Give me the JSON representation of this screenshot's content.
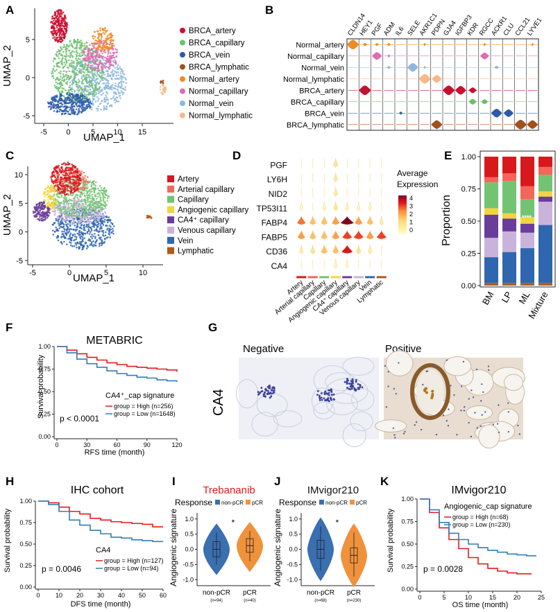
{
  "panel_letters": [
    "A",
    "B",
    "C",
    "D",
    "E",
    "F",
    "G",
    "H",
    "I",
    "J",
    "K"
  ],
  "panelA": {
    "xlabel": "UMAP_1",
    "ylabel": "UMAP_2",
    "xticks": [
      "-5",
      "0",
      "5",
      "10",
      "15"
    ],
    "yticks": [
      "5",
      "0",
      "-5"
    ],
    "legend": [
      {
        "label": "BRCA_artery",
        "color": "#c8102e"
      },
      {
        "label": "BRCA_capillary",
        "color": "#6cc06c"
      },
      {
        "label": "BRCA_vein",
        "color": "#2b5ca8"
      },
      {
        "label": "BRCA_lymphatic",
        "color": "#a3501d"
      },
      {
        "label": "Normal_artery",
        "color": "#f08a24"
      },
      {
        "label": "Normal_capillary",
        "color": "#e06bb0"
      },
      {
        "label": "Normal_vein",
        "color": "#8eb8de"
      },
      {
        "label": "Normal_lymphatic",
        "color": "#f7b98a"
      }
    ]
  },
  "panelB": {
    "genes": [
      "CLDN14",
      "HEY1",
      "PGF",
      "ADM",
      "IL6",
      "SELE",
      "AKR1C1",
      "PDPN",
      "GJA4",
      "IGFBP3",
      "KDR",
      "RGCC",
      "ACKR1",
      "CLU",
      "CCL21",
      "LYVE1"
    ],
    "rows": [
      {
        "label": "Normal_artery",
        "color": "#f08a24",
        "cells": [
          1.0,
          0.3,
          0.2,
          0.2,
          0,
          0,
          0.1,
          0,
          0,
          0,
          0,
          0.1,
          0,
          0,
          0,
          0.1
        ]
      },
      {
        "label": "Normal_capillary",
        "color": "#e06bb0",
        "cells": [
          0,
          0,
          0.8,
          0.1,
          0,
          0,
          0,
          0,
          0,
          0,
          0,
          0.7,
          0,
          0,
          0,
          0
        ]
      },
      {
        "label": "Normal_vein",
        "color": "#8eb8de",
        "cells": [
          0,
          0,
          0,
          0.2,
          0,
          0.9,
          0.1,
          0,
          0,
          0,
          0,
          0,
          0.3,
          0,
          0,
          0
        ]
      },
      {
        "label": "Normal_lymphatic",
        "color": "#f7b98a",
        "cells": [
          0,
          0,
          0,
          0,
          0,
          0,
          1.0,
          0.8,
          0,
          0,
          0,
          0,
          0,
          0,
          0,
          0
        ]
      },
      {
        "label": "BRCA_artery",
        "color": "#c8102e",
        "cells": [
          0,
          1.0,
          0,
          0,
          0,
          0,
          0,
          0,
          1.0,
          0.9,
          0.6,
          0,
          0,
          0,
          0,
          0
        ]
      },
      {
        "label": "BRCA_capillary",
        "color": "#6cc06c",
        "cells": [
          0,
          0,
          0,
          0,
          0,
          0,
          0,
          0,
          0,
          0,
          0.6,
          0.5,
          0,
          0,
          0,
          0
        ]
      },
      {
        "label": "BRCA_vein",
        "color": "#2b5ca8",
        "cells": [
          0,
          0,
          0,
          0,
          0.2,
          0,
          0,
          0,
          0,
          0,
          0,
          0,
          0.9,
          0.8,
          0,
          0
        ]
      },
      {
        "label": "BRCA_lymphatic",
        "color": "#a3501d",
        "cells": [
          0,
          0,
          0,
          0,
          0,
          0,
          0,
          0.9,
          0,
          0,
          0,
          0,
          0,
          0,
          1.0,
          0.9
        ]
      }
    ]
  },
  "panelC": {
    "xlabel": "UMAP_1",
    "ylabel": "UMAP_2",
    "xticks": [
      "-5",
      "0",
      "5",
      "10"
    ],
    "yticks": [
      "10",
      "5",
      "0",
      "-5"
    ],
    "legend": [
      {
        "label": "Artery",
        "color": "#d7191c"
      },
      {
        "label": "Arterial capillary",
        "color": "#f4665a"
      },
      {
        "label": "Capillary",
        "color": "#72c472"
      },
      {
        "label": "Angiogenic capillary",
        "color": "#f2d53c"
      },
      {
        "label": "CA4⁺ capillary",
        "color": "#6a3d9a"
      },
      {
        "label": "Venous capillary",
        "color": "#c9b3db"
      },
      {
        "label": "Vein",
        "color": "#2f66b0"
      },
      {
        "label": "Lymphatic",
        "color": "#b15a1a"
      }
    ]
  },
  "panelD": {
    "genes": [
      "PGF",
      "LY6H",
      "NID2",
      "TP53I11",
      "FABP4",
      "FABP5",
      "CD36",
      "CA4"
    ],
    "celltypes": [
      "Artery",
      "Arterial capillary",
      "Capillary",
      "Angiogenic capillary",
      "CA4⁺ capillary",
      "Venous capillary",
      "Vein",
      "Lymphatic"
    ],
    "colors": [
      "#d7191c",
      "#f4665a",
      "#72c472",
      "#f2d53c",
      "#6a3d9a",
      "#c9b3db",
      "#2f66b0",
      "#b15a1a"
    ],
    "values": [
      [
        0,
        0,
        0,
        0.8,
        0,
        0,
        0,
        0
      ],
      [
        0,
        0,
        0,
        0.6,
        0,
        0,
        0,
        0
      ],
      [
        0,
        0,
        0,
        0.6,
        0,
        0,
        0,
        0
      ],
      [
        0.1,
        0,
        0.3,
        0.7,
        0.3,
        0.2,
        0.2,
        0
      ],
      [
        2.5,
        1.5,
        1.5,
        2,
        4.5,
        2,
        1.5,
        0.5
      ],
      [
        2,
        1.5,
        1.5,
        2,
        3,
        3,
        2,
        3
      ],
      [
        0.5,
        0.8,
        1.5,
        1.5,
        3.5,
        0.8,
        0.5,
        0
      ],
      [
        0,
        0,
        0,
        0.2,
        0.1,
        0,
        0,
        0
      ]
    ],
    "legend_title": "Average Expression",
    "legend_ticks": [
      "4",
      "3",
      "2",
      "1",
      "0"
    ]
  },
  "panelE": {
    "chart_data": {
      "type": "bar",
      "stacked": true,
      "categories": [
        "BM",
        "LP",
        "ML",
        "Mixture"
      ],
      "ylabel": "Proportion",
      "yticks": [
        "1.00",
        "0.75",
        "0.50",
        "0.25",
        "0.00"
      ],
      "ylim": [
        0,
        1
      ],
      "series": [
        {
          "name": "Lymphatic",
          "color": "#b15a1a",
          "values": [
            0.02,
            0.02,
            0.02,
            0.02
          ]
        },
        {
          "name": "Vein",
          "color": "#2f66b0",
          "values": [
            0.2,
            0.24,
            0.27,
            0.45
          ]
        },
        {
          "name": "Venous capillary",
          "color": "#c9b3db",
          "values": [
            0.15,
            0.16,
            0.12,
            0.18
          ]
        },
        {
          "name": "CA4⁺ capillary",
          "color": "#6a3d9a",
          "values": [
            0.18,
            0.1,
            0.07,
            0.04
          ]
        },
        {
          "name": "Angiogenic capillary",
          "color": "#f2d53c",
          "values": [
            0.05,
            0.04,
            0.05,
            0.04
          ]
        },
        {
          "name": "Capillary",
          "color": "#72c472",
          "values": [
            0.2,
            0.25,
            0.14,
            0.13
          ]
        },
        {
          "name": "Arterial capillary",
          "color": "#f4665a",
          "values": [
            0.04,
            0.06,
            0.1,
            0.06
          ]
        },
        {
          "name": "Artery",
          "color": "#d7191c",
          "values": [
            0.16,
            0.13,
            0.23,
            0.08
          ]
        }
      ],
      "annotation": "****"
    }
  },
  "panelF": {
    "title": "METABRIC",
    "chart_data": {
      "type": "line",
      "xlabel": "RFS time (month)",
      "ylabel": "Survival probability",
      "xticks": [
        "0",
        "30",
        "60",
        "90",
        "120"
      ],
      "yticks": [
        "1.00",
        "0.75",
        "0.50",
        "0.25",
        "0.00"
      ],
      "xlim": [
        0,
        120
      ],
      "ylim": [
        0,
        1
      ],
      "series": [
        {
          "name": "High",
          "color": "#e31a1c",
          "x": [
            0,
            10,
            20,
            30,
            40,
            50,
            60,
            70,
            80,
            90,
            100,
            110,
            120
          ],
          "y": [
            1,
            0.96,
            0.92,
            0.88,
            0.85,
            0.82,
            0.8,
            0.78,
            0.77,
            0.76,
            0.75,
            0.74,
            0.72
          ]
        },
        {
          "name": "Low",
          "color": "#2c7fb8",
          "x": [
            0,
            10,
            20,
            30,
            40,
            50,
            60,
            70,
            80,
            90,
            100,
            110,
            120
          ],
          "y": [
            1,
            0.93,
            0.86,
            0.81,
            0.77,
            0.73,
            0.7,
            0.68,
            0.66,
            0.65,
            0.63,
            0.62,
            0.61
          ]
        }
      ]
    },
    "legend_title": "CA4⁺_cap signature",
    "legend": [
      "group = High (n=256)",
      "group = Low (n=1648)"
    ],
    "pvalue": "p < 0.0001"
  },
  "panelG": {
    "row_label": "CA4",
    "negative": "Negative",
    "positive": "Positive"
  },
  "panelH": {
    "title": "IHC cohort",
    "chart_data": {
      "type": "line",
      "xlabel": "DFS time (month)",
      "ylabel": "Survival probability",
      "xticks": [
        "0",
        "10",
        "20",
        "30",
        "40",
        "50",
        "60"
      ],
      "yticks": [
        "1.00",
        "0.75",
        "0.50",
        "0.25",
        "0.00"
      ],
      "xlim": [
        0,
        60
      ],
      "ylim": [
        0,
        1
      ],
      "series": [
        {
          "name": "High",
          "color": "#e31a1c",
          "x": [
            0,
            5,
            10,
            15,
            20,
            25,
            30,
            35,
            40,
            45,
            50,
            55,
            60
          ],
          "y": [
            1,
            0.98,
            0.93,
            0.88,
            0.85,
            0.8,
            0.78,
            0.76,
            0.75,
            0.74,
            0.73,
            0.7,
            0.7
          ]
        },
        {
          "name": "Low",
          "color": "#2c7fb8",
          "x": [
            0,
            5,
            10,
            15,
            20,
            25,
            30,
            35,
            40,
            45,
            50,
            55,
            60
          ],
          "y": [
            1,
            0.96,
            0.88,
            0.78,
            0.72,
            0.66,
            0.62,
            0.58,
            0.57,
            0.55,
            0.54,
            0.53,
            0.53
          ]
        }
      ]
    },
    "legend_title": "CA4",
    "legend": [
      "group = High (n=127)",
      "group = Low (n=94)"
    ],
    "pvalue": "p = 0.0046"
  },
  "panelI": {
    "title": "Trebananib",
    "title_color": "#e31a1c",
    "response_label": "Response",
    "legend": [
      "non-pCR",
      "pCR"
    ],
    "ylabel": "Angiogenic signature",
    "yticks": [
      "1.0",
      "0.5",
      "0.0",
      "-0.5",
      "-1.0"
    ],
    "groups": [
      "non-pCR",
      "pCR"
    ],
    "counts": [
      "(n=94)",
      "(n=40)"
    ],
    "star": "*",
    "chart_data": {
      "type": "violin",
      "groups": [
        "non-pCR",
        "pCR"
      ],
      "median": [
        0.0,
        0.12
      ],
      "q1": [
        -0.25,
        -0.1
      ],
      "q3": [
        0.25,
        0.35
      ],
      "min": [
        -0.5,
        -0.4
      ],
      "max": [
        0.55,
        0.6
      ],
      "ylim": [
        -1.2,
        1.2
      ]
    }
  },
  "panelJ": {
    "title": "IMvigor210",
    "response_label": "Response",
    "legend": [
      "non-pCR",
      "pCR"
    ],
    "ylabel": "Angiogenic signature",
    "yticks": [
      "1.0",
      "0.5",
      "0.0",
      "-0.5",
      "-1.0"
    ],
    "groups": [
      "non-pCR",
      "pCR"
    ],
    "counts": [
      "(n=68)",
      "(n=230)"
    ],
    "star": "*",
    "chart_data": {
      "type": "violin",
      "groups": [
        "non-pCR",
        "pCR"
      ],
      "median": [
        0.0,
        -0.2
      ],
      "q1": [
        -0.3,
        -0.45
      ],
      "q3": [
        0.3,
        0.05
      ],
      "min": [
        -0.7,
        -0.9
      ],
      "max": [
        0.75,
        0.55
      ],
      "ylim": [
        -1.2,
        1.2
      ]
    }
  },
  "panelK": {
    "title": "IMvigor210",
    "chart_data": {
      "type": "line",
      "xlabel": "OS time (month)",
      "ylabel": "Survival probability",
      "xticks": [
        "0",
        "5",
        "10",
        "15",
        "20",
        "25"
      ],
      "yticks": [
        "1.00",
        "0.75",
        "0.50",
        "0.25",
        "0.00"
      ],
      "xlim": [
        0,
        25
      ],
      "ylim": [
        0,
        1
      ],
      "series": [
        {
          "name": "High",
          "color": "#e31a1c",
          "x": [
            0,
            2,
            4,
            6,
            8,
            10,
            12,
            14,
            16,
            18,
            20,
            22,
            23
          ],
          "y": [
            1,
            0.85,
            0.68,
            0.55,
            0.45,
            0.35,
            0.28,
            0.23,
            0.2,
            0.18,
            0.17,
            0.17,
            0.17
          ]
        },
        {
          "name": "Low",
          "color": "#2c7fb8",
          "x": [
            0,
            2,
            4,
            6,
            8,
            10,
            12,
            14,
            16,
            18,
            20,
            22,
            24
          ],
          "y": [
            1,
            0.88,
            0.74,
            0.62,
            0.55,
            0.5,
            0.46,
            0.43,
            0.41,
            0.39,
            0.38,
            0.37,
            0.37
          ]
        }
      ]
    },
    "legend_title": "Angiogenic_cap signature",
    "legend": [
      "group = High (n=68)",
      "group = Low (n=230)"
    ],
    "pvalue": "p = 0.0028"
  }
}
